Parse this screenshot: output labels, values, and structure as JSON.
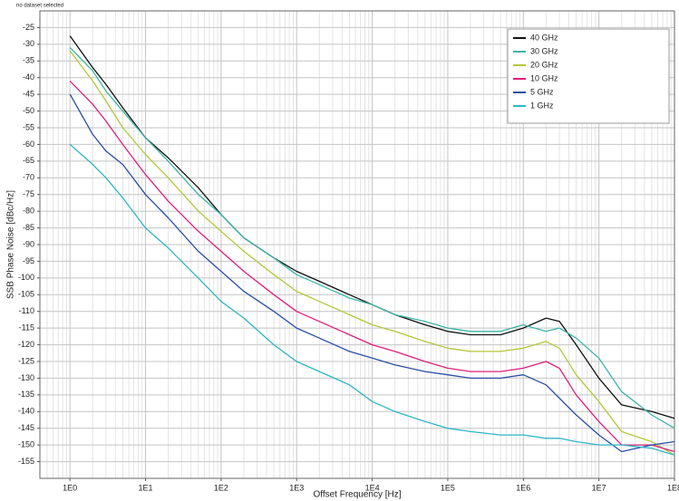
{
  "chart_data": {
    "type": "line",
    "title": "no dataset selected",
    "x_label": "Offset Frequency [Hz]",
    "y_label": "SSB Phase Noise [dBc/Hz]",
    "log_x": true,
    "grid": true,
    "minor_grid": true,
    "legend": "top-right",
    "xlim": [
      0.4,
      100000000
    ],
    "xticks": [
      {
        "value": 1,
        "label": "1E0"
      },
      {
        "value": 10,
        "label": "1E1"
      },
      {
        "value": 100,
        "label": "1E2"
      },
      {
        "value": 1000,
        "label": "1E3"
      },
      {
        "value": 10000,
        "label": "1E4"
      },
      {
        "value": 100000,
        "label": "1E5"
      },
      {
        "value": 1000000,
        "label": "1E6"
      },
      {
        "value": 10000000,
        "label": "1E7"
      },
      {
        "value": 100000000,
        "label": "1E8"
      }
    ],
    "ylim": [
      -160,
      -20
    ],
    "yticks": [
      -25,
      -30,
      -35,
      -40,
      -45,
      -50,
      -55,
      -60,
      -65,
      -70,
      -75,
      -80,
      -85,
      -90,
      -95,
      -100,
      -105,
      -110,
      -115,
      -120,
      -125,
      -130,
      -135,
      -140,
      -145,
      -150,
      -155
    ],
    "x": [
      1,
      2,
      3,
      5,
      10,
      20,
      50,
      100,
      200,
      500,
      1000,
      2000,
      5000,
      10000,
      20000,
      50000,
      100000,
      200000,
      500000,
      1000000,
      2000000,
      3000000,
      5000000,
      10000000,
      20000000,
      50000000,
      100000000
    ],
    "series": [
      {
        "name": "40 GHz",
        "color": "#111111",
        "values": [
          -27.5,
          -37,
          -42,
          -49,
          -58,
          -64,
          -73,
          -81,
          -88,
          -94,
          -98,
          -101,
          -105,
          -108,
          -111,
          -114,
          -116,
          -117,
          -117,
          -115,
          -112,
          -113,
          -120,
          -130,
          -138,
          -140,
          -142
        ]
      },
      {
        "name": "30 GHz",
        "color": "#3db5a6",
        "values": [
          -31,
          -38,
          -44,
          -50,
          -58,
          -65,
          -75,
          -81,
          -88,
          -94,
          -99,
          -102,
          -106,
          -108,
          -111,
          -113,
          -115,
          -116,
          -116,
          -114,
          -116,
          -115,
          -118,
          -124,
          -134,
          -141,
          -145
        ]
      },
      {
        "name": "20 GHz",
        "color": "#b5c63a",
        "values": [
          -32,
          -41,
          -47,
          -55,
          -63,
          -70,
          -80,
          -86,
          -92,
          -99,
          -104,
          -107,
          -111,
          -114,
          -116,
          -119,
          -121,
          -122,
          -122,
          -121,
          -119,
          -121,
          -129,
          -137,
          -146,
          -149,
          -153
        ]
      },
      {
        "name": "10 GHz",
        "color": "#de1f7a",
        "values": [
          -41,
          -48,
          -53,
          -60,
          -69,
          -77,
          -86,
          -92,
          -98,
          -105,
          -110,
          -113,
          -117,
          -120,
          -122,
          -125,
          -127,
          -128,
          -128,
          -127,
          -125,
          -127,
          -135,
          -143,
          -150,
          -150,
          -152
        ]
      },
      {
        "name": "5 GHz",
        "color": "#2a4ea6",
        "values": [
          -45,
          -57,
          -62,
          -66,
          -75,
          -82,
          -92,
          -98,
          -104,
          -110,
          -115,
          -118,
          -122,
          -124,
          -126,
          -128,
          -129,
          -130,
          -130,
          -129,
          -132,
          -136,
          -141,
          -147,
          -152,
          -150,
          -149
        ]
      },
      {
        "name": "1 GHz",
        "color": "#2fb6c6",
        "values": [
          -60,
          -66,
          -70,
          -76,
          -85,
          -91,
          -100,
          -107,
          -112,
          -120,
          -125,
          -128,
          -132,
          -137,
          -140,
          -143,
          -145,
          -146,
          -147,
          -147,
          -148,
          -148,
          -149,
          -150,
          -150,
          -151,
          -153
        ]
      }
    ]
  }
}
